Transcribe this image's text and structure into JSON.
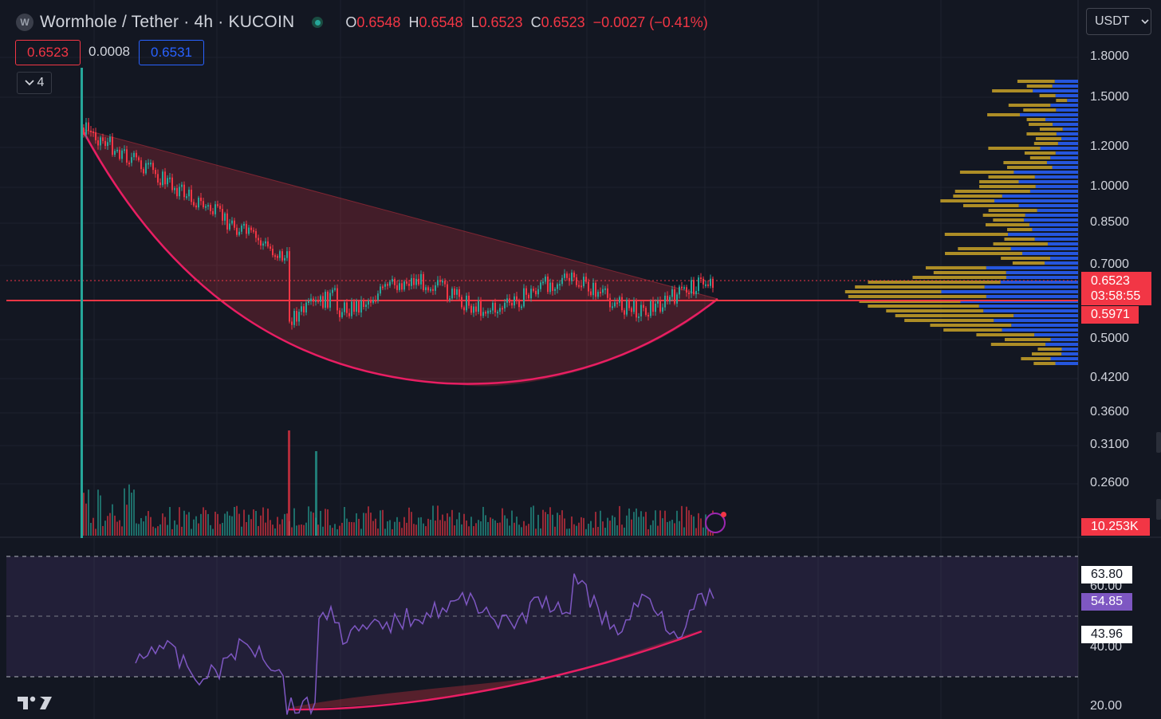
{
  "header": {
    "logo_letter": "W",
    "title": "Wormhole / Tether · 4h · KUCOIN",
    "ohlc": [
      {
        "key": "O",
        "value": "0.6548"
      },
      {
        "key": "H",
        "value": "0.6548"
      },
      {
        "key": "L",
        "value": "0.6523"
      },
      {
        "key": "C",
        "value": "0.6523"
      }
    ],
    "change": "−0.0027 (−0.41%)",
    "sell_price": "0.6523",
    "spread": "0.0008",
    "buy_price": "0.6531",
    "indicators_count": "4",
    "currency": "USDT"
  },
  "price_axis": {
    "ticks": [
      "1.8000",
      "1.5000",
      "1.2000",
      "1.0000",
      "0.8500",
      "0.7000",
      "0.5000",
      "0.4200",
      "0.3600",
      "0.3100",
      "0.2600"
    ],
    "current_price": "0.6523",
    "countdown": "03:58:55",
    "horizontal_level": "0.5971",
    "volume_label": "10.253K"
  },
  "rsi_axis": {
    "ticks": [
      "60.00",
      "40.00",
      "20.00"
    ],
    "upper_band": "63.80",
    "rsi_value": "54.85",
    "lower_band": "43.96"
  },
  "colors": {
    "background": "#131722",
    "up": "#26a69a",
    "down": "#f23645",
    "pattern_fill": "#f23645",
    "curve": "#e91e63",
    "rsi_line": "#7e57c2",
    "vp_up": "#2962ff",
    "vp_down": "#c9a227"
  },
  "icons": {
    "logo": "tradingview-logo",
    "alert": "bolt-icon",
    "collapse": "chevron-down-icon",
    "currency_dropdown": "chevron-down-icon"
  }
}
